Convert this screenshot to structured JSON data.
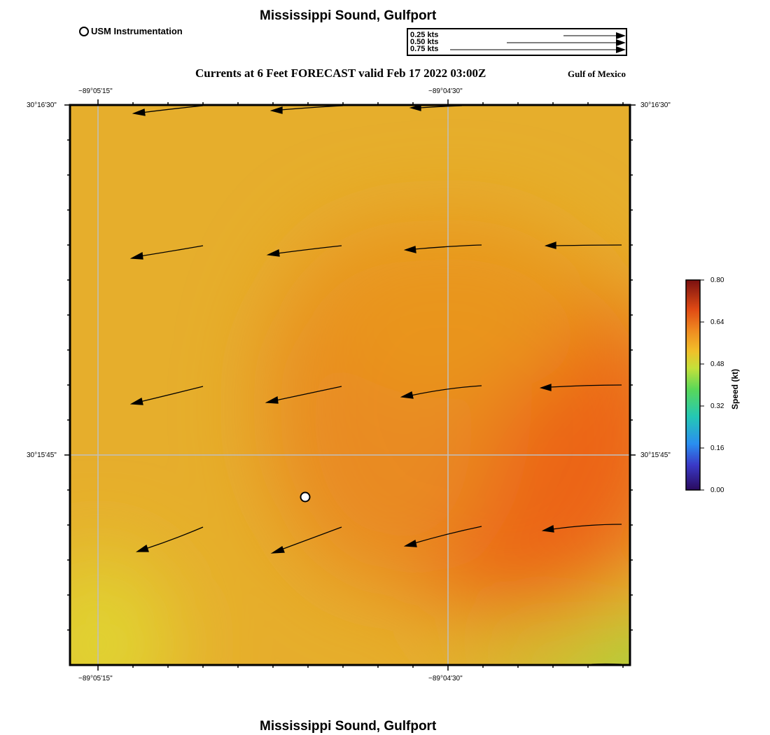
{
  "header": {
    "title": "Mississippi Sound, Gulfport",
    "subtitle": "Currents at 6 Feet FORECAST valid Feb 17 2022 03:00Z",
    "region": "Gulf of Mexico"
  },
  "legend": {
    "instrument_label": "USM Instrumentation",
    "scale": [
      {
        "label": "0.25 kts",
        "speed": 0.25
      },
      {
        "label": "0.50 kts",
        "speed": 0.5
      },
      {
        "label": "0.75 kts",
        "speed": 0.75
      }
    ]
  },
  "axes": {
    "lon_ticks": [
      "−89°05'15\"",
      "−89°04'30\""
    ],
    "lat_ticks": [
      "30°16'30\"",
      "30°15'45\""
    ]
  },
  "colorbar": {
    "label": "Speed (kt)",
    "ticks": [
      "0.80",
      "0.64",
      "0.48",
      "0.32",
      "0.16",
      "0.00"
    ],
    "min": 0.0,
    "max": 0.8
  },
  "footer": {
    "title": "Mississippi Sound, Gulfport"
  },
  "map": {
    "station": "USM Instrumentation",
    "colors": {
      "low": "#2a0a5e",
      "mid": "#3ad17a",
      "high": "#7a1010",
      "frame": "#000000",
      "grid": "#bfbfbf"
    }
  }
}
